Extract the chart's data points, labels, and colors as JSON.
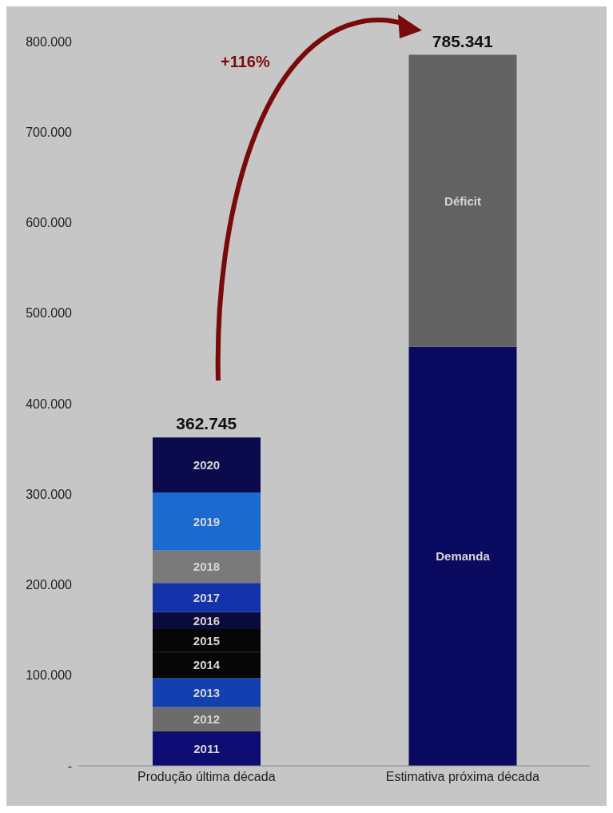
{
  "chart_data": {
    "type": "bar",
    "stacked": true,
    "categories": [
      "Produção última década",
      "Estimativa próxima década"
    ],
    "series": [
      {
        "name": "2011",
        "color": "#0c0c72",
        "values": [
          38000,
          null
        ]
      },
      {
        "name": "2012",
        "color": "#6c6c6c",
        "values": [
          27000,
          null
        ]
      },
      {
        "name": "2013",
        "color": "#1240b0",
        "values": [
          32000,
          null
        ]
      },
      {
        "name": "2014",
        "color": "#060606",
        "values": [
          29000,
          null
        ]
      },
      {
        "name": "2015",
        "color": "#060606",
        "values": [
          25000,
          null
        ]
      },
      {
        "name": "2016",
        "color": "#0a0a3c",
        "values": [
          19000,
          null
        ]
      },
      {
        "name": "2017",
        "color": "#1232aa",
        "values": [
          32000,
          null
        ]
      },
      {
        "name": "2018",
        "color": "#7a7a7a",
        "values": [
          36000,
          null
        ]
      },
      {
        "name": "2019",
        "color": "#1a6ad0",
        "values": [
          64000,
          null
        ]
      },
      {
        "name": "2020",
        "color": "#0a0a4c",
        "values": [
          60745,
          null
        ]
      },
      {
        "name": "Demanda",
        "color": "#0a0a60",
        "values": [
          null,
          463000
        ]
      },
      {
        "name": "Déficit",
        "color": "#626262",
        "values": [
          null,
          322341
        ]
      }
    ],
    "totals": [
      "362.745",
      "785.341"
    ],
    "ylim": [
      0,
      800000
    ],
    "yticks": [
      {
        "value": 0,
        "label": "-"
      },
      {
        "value": 100000,
        "label": "100.000"
      },
      {
        "value": 200000,
        "label": "200.000"
      },
      {
        "value": 300000,
        "label": "300.000"
      },
      {
        "value": 400000,
        "label": "400.000"
      },
      {
        "value": 500000,
        "label": "500.000"
      },
      {
        "value": 600000,
        "label": "600.000"
      },
      {
        "value": 700000,
        "label": "700.000"
      },
      {
        "value": 800000,
        "label": "800.000"
      }
    ],
    "grid": false,
    "legend": false,
    "annotations": [
      "+116%"
    ]
  }
}
